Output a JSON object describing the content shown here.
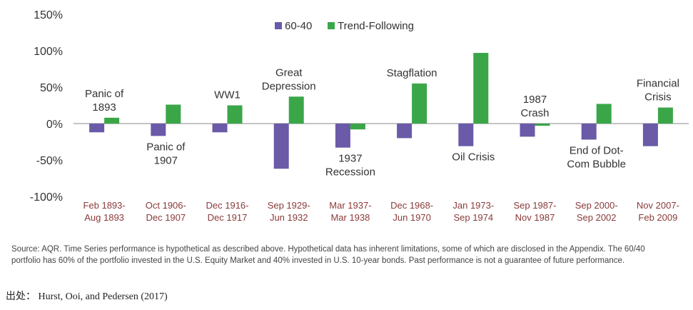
{
  "chart_data": {
    "type": "bar",
    "categories": [
      [
        "Feb 1893-",
        "Aug 1893"
      ],
      [
        "Oct 1906-",
        "Dec 1907"
      ],
      [
        "Dec 1916-",
        "Dec 1917"
      ],
      [
        "Sep 1929-",
        "Jun 1932"
      ],
      [
        "Mar 1937-",
        "Mar 1938"
      ],
      [
        "Dec 1968-",
        "Jun 1970"
      ],
      [
        "Jan 1973-",
        "Sep 1974"
      ],
      [
        "Sep 1987-",
        "Nov 1987"
      ],
      [
        "Sep 2000-",
        "Sep 2002"
      ],
      [
        "Nov 2007-",
        "Feb 2009"
      ]
    ],
    "series": [
      {
        "name": "60-40",
        "color": "#6a5aa8",
        "values": [
          -12,
          -17,
          -12,
          -62,
          -33,
          -20,
          -31,
          -18,
          -22,
          -31
        ]
      },
      {
        "name": "Trend-Following",
        "color": "#3aa648",
        "values": [
          8,
          26,
          25,
          37,
          -8,
          55,
          97,
          -3,
          27,
          22
        ]
      }
    ],
    "events": [
      {
        "label": [
          "Panic of",
          "1893"
        ],
        "position": "above"
      },
      {
        "label": [
          "Panic of",
          "1907"
        ],
        "position": "below"
      },
      {
        "label": [
          "WW1"
        ],
        "position": "above"
      },
      {
        "label": [
          "Great",
          "Depression"
        ],
        "position": "above"
      },
      {
        "label": [
          "1937",
          "Recession"
        ],
        "position": "below"
      },
      {
        "label": [
          "Stagflation"
        ],
        "position": "above"
      },
      {
        "label": [
          "Oil Crisis"
        ],
        "position": "below"
      },
      {
        "label": [
          "1987",
          "Crash"
        ],
        "position": "above"
      },
      {
        "label": [
          "End of Dot-",
          "Com Bubble"
        ],
        "position": "below"
      },
      {
        "label": [
          "Financial",
          "Crisis"
        ],
        "position": "above"
      }
    ],
    "ylim": [
      -100,
      150
    ],
    "yticks": [
      -100,
      -50,
      0,
      50,
      100,
      150
    ],
    "ytick_labels": [
      "-100%",
      "-50%",
      "0%",
      "50%",
      "100%",
      "150%"
    ],
    "legend_position": "top-center",
    "grid": false
  },
  "footnote": "Source: AQR. Time Series performance is hypothetical as described above. Hypothetical data has inherent limitations, some of which are disclosed in the Appendix. The 60/40 portfolio has 60% of the portfolio invested in the U.S. Equity Market and 40% invested in U.S. 10-year bonds. Past performance is not a guarantee of future performance.",
  "source_line": "出处： Hurst, Ooi, and Pedersen (2017)"
}
